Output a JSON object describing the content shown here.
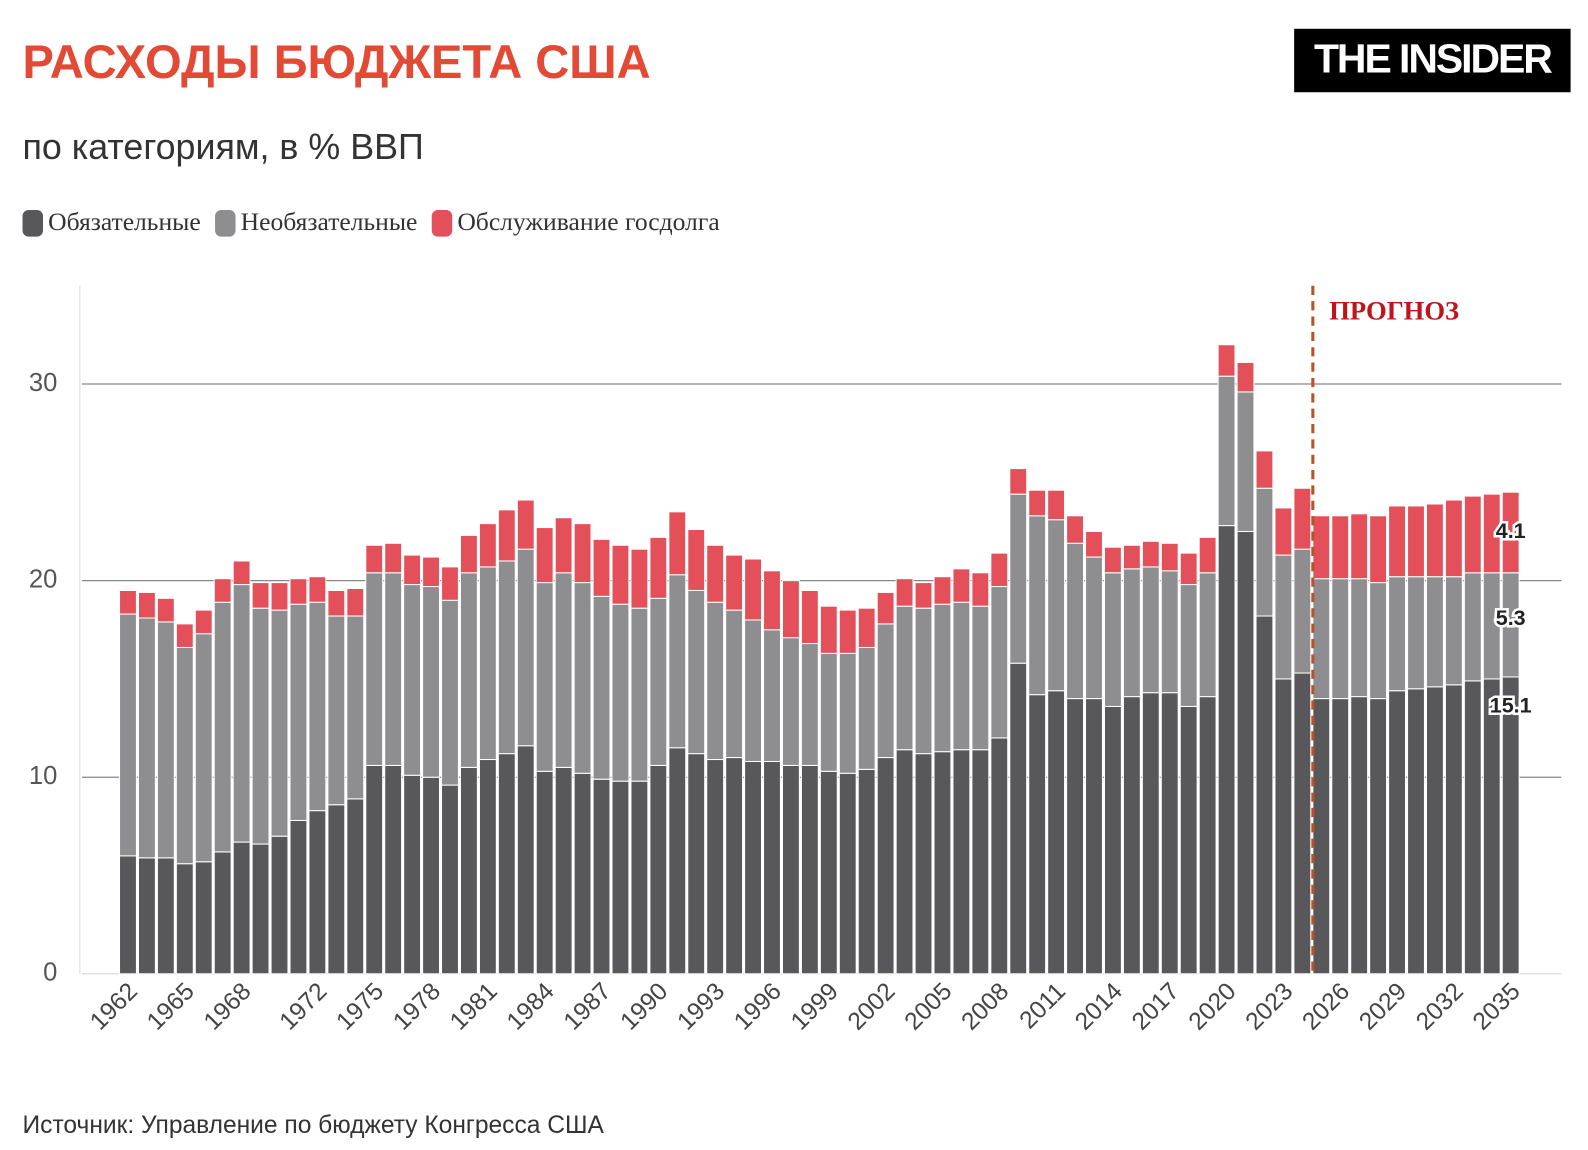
{
  "chart_data": {
    "type": "stacked_bar",
    "title": "РАСХОДЫ БЮДЖЕТА США",
    "subtitle": "по категориям, в % ВВП",
    "source": "Источник: Управление по бюджету Конгресса США",
    "logo": "THE INSIDER",
    "annotation": "ПРОГНОЗ",
    "categories": [
      "1962",
      null,
      null,
      "1965",
      null,
      null,
      "1968",
      null,
      null,
      null,
      "1972",
      null,
      null,
      "1975",
      null,
      null,
      "1978",
      null,
      null,
      "1981",
      null,
      null,
      "1984",
      null,
      null,
      "1987",
      null,
      null,
      "1990",
      null,
      null,
      "1993",
      null,
      null,
      "1996",
      null,
      null,
      "1999",
      null,
      null,
      "2002",
      null,
      null,
      "2005",
      null,
      null,
      "2008",
      null,
      null,
      "2011",
      null,
      null,
      "2014",
      null,
      null,
      "2017",
      null,
      null,
      "2020",
      null,
      null,
      "2023",
      null,
      null,
      "2026",
      null,
      null,
      "2029",
      null,
      null,
      "2032",
      null,
      null,
      "2035"
    ],
    "series": [
      {
        "name": "Обязательные",
        "color": "#58585a",
        "values": [
          6.0,
          5.9,
          5.9,
          5.6,
          5.7,
          6.2,
          6.7,
          6.6,
          7.0,
          7.8,
          8.3,
          8.6,
          8.9,
          10.6,
          10.6,
          10.1,
          10.0,
          9.6,
          10.5,
          10.9,
          11.2,
          11.6,
          10.3,
          10.5,
          10.2,
          9.9,
          9.8,
          9.8,
          10.6,
          11.5,
          11.2,
          10.9,
          11.0,
          10.8,
          10.8,
          10.6,
          10.6,
          10.3,
          10.2,
          10.4,
          11.0,
          11.4,
          11.2,
          11.3,
          11.4,
          11.4,
          12.0,
          15.8,
          14.2,
          14.4,
          14.0,
          14.0,
          13.6,
          14.1,
          14.3,
          14.3,
          13.6,
          14.1,
          22.8,
          22.5,
          18.2,
          15.0,
          15.3,
          14.0,
          14.0,
          14.1,
          14.0,
          14.4,
          14.5,
          14.6,
          14.7,
          14.9,
          15.0,
          15.1
        ]
      },
      {
        "name": "Необязательные",
        "color": "#8e8e90",
        "values": [
          12.3,
          12.2,
          12.0,
          11.0,
          11.6,
          12.7,
          13.1,
          12.0,
          11.5,
          11.0,
          10.6,
          9.6,
          9.3,
          9.8,
          9.8,
          9.7,
          9.7,
          9.4,
          9.9,
          9.8,
          9.8,
          10.0,
          9.6,
          9.9,
          9.7,
          9.3,
          9.0,
          8.8,
          8.5,
          8.8,
          8.3,
          8.0,
          7.5,
          7.2,
          6.7,
          6.5,
          6.2,
          6.0,
          6.1,
          6.2,
          6.8,
          7.3,
          7.4,
          7.5,
          7.5,
          7.3,
          7.7,
          8.6,
          9.1,
          8.7,
          7.9,
          7.2,
          6.8,
          6.5,
          6.4,
          6.2,
          6.2,
          6.3,
          7.6,
          7.1,
          6.5,
          6.3,
          6.3,
          6.1,
          6.1,
          6.0,
          5.9,
          5.8,
          5.7,
          5.6,
          5.5,
          5.5,
          5.4,
          5.3
        ]
      },
      {
        "name": "Обслуживание госдолга",
        "color": "#e4505a",
        "values": [
          1.2,
          1.3,
          1.2,
          1.2,
          1.2,
          1.2,
          1.2,
          1.3,
          1.4,
          1.3,
          1.3,
          1.3,
          1.4,
          1.4,
          1.5,
          1.5,
          1.5,
          1.7,
          1.9,
          2.2,
          2.6,
          2.5,
          2.8,
          2.8,
          3.0,
          2.9,
          3.0,
          3.0,
          3.1,
          3.2,
          3.1,
          2.9,
          2.8,
          3.1,
          3.0,
          2.9,
          2.7,
          2.4,
          2.2,
          2.0,
          1.6,
          1.4,
          1.3,
          1.4,
          1.7,
          1.7,
          1.7,
          1.3,
          1.3,
          1.5,
          1.4,
          1.3,
          1.3,
          1.2,
          1.3,
          1.4,
          1.6,
          1.8,
          1.6,
          1.5,
          1.9,
          2.4,
          3.1,
          3.2,
          3.2,
          3.3,
          3.4,
          3.6,
          3.6,
          3.7,
          3.9,
          3.9,
          4.0,
          4.1
        ]
      }
    ],
    "ylim": [
      0,
      35
    ],
    "yticks": [
      0,
      10,
      20,
      30
    ],
    "grid": true
  }
}
